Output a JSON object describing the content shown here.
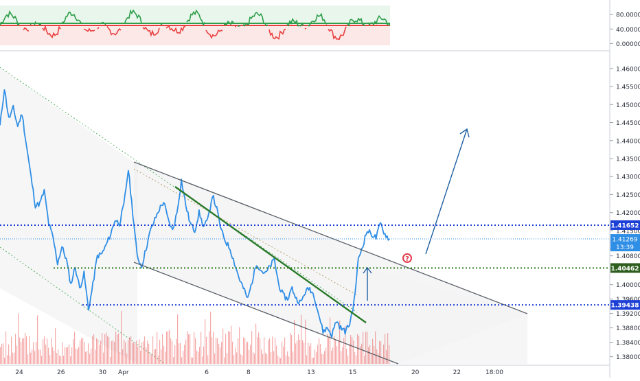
{
  "chart_data": {
    "type": "line",
    "instrument_note": "",
    "oscillator": {
      "ticks": [
        "80.00000",
        "40.00000",
        "0.00000"
      ],
      "tick_values": [
        80,
        40,
        0
      ],
      "ylim": [
        -5,
        105
      ],
      "upper_band": 50,
      "lower_band": 45,
      "colors": {
        "above": "#2e9e4a",
        "below": "#e8403f",
        "band_top": "#e9f6ec",
        "band_bottom": "#fde8e8"
      }
    },
    "price": {
      "ylim": [
        1.37935,
        1.46225
      ],
      "y_ticks": [
        "1.46000",
        "1.45500",
        "1.45000",
        "1.44500",
        "1.44000",
        "1.43500",
        "1.43000",
        "1.42500",
        "1.42000",
        "1.41500",
        "1.41000",
        "1.40800",
        "1.40000",
        "1.39600",
        "1.39200",
        "1.38800",
        "1.38400",
        "1.38000"
      ],
      "x_ticks": [
        {
          "label": "24",
          "index": 0
        },
        {
          "label": "26",
          "index": 2
        },
        {
          "label": "30",
          "index": 4
        },
        {
          "label": "Apr",
          "index": 5
        },
        {
          "label": "6",
          "index": 9
        },
        {
          "label": "8",
          "index": 11
        },
        {
          "label": "13",
          "index": 14
        },
        {
          "label": "15",
          "index": 16
        },
        {
          "label": "20",
          "index": 19
        },
        {
          "label": "22",
          "index": 21
        },
        {
          "label": "18:00",
          "index": 22.8
        }
      ],
      "x_domain": [
        0,
        27.5
      ],
      "series": [
        {
          "values": [
            1.444,
            1.4545,
            1.446,
            1.449,
            1.444,
            1.4475,
            1.4385,
            1.43,
            1.422,
            1.4225,
            1.426,
            1.417,
            1.413,
            1.406,
            1.4105,
            1.407,
            1.4,
            1.405,
            1.399,
            1.403,
            1.393,
            1.4,
            1.408,
            1.4085,
            1.411,
            1.414,
            1.418,
            1.417,
            1.422,
            1.432,
            1.42,
            1.408,
            1.405,
            1.41,
            1.415,
            1.418,
            1.421,
            1.423,
            1.418,
            1.415,
            1.42,
            1.429,
            1.422,
            1.417,
            1.415,
            1.42,
            1.416,
            1.418,
            1.425,
            1.421,
            1.415,
            1.412,
            1.41,
            1.406,
            1.402,
            1.399,
            1.396,
            1.401,
            1.406,
            1.404,
            1.403,
            1.405,
            1.407,
            1.4,
            1.397,
            1.396,
            1.399,
            1.396,
            1.395,
            1.398,
            1.399,
            1.397,
            1.392,
            1.387,
            1.388,
            1.386,
            1.39,
            1.388,
            1.387,
            1.389,
            1.395,
            1.407,
            1.411,
            1.415,
            1.414,
            1.413,
            1.417,
            1.414,
            1.4127
          ]
        }
      ],
      "series_color": "#2f8ee5",
      "current_price": "1.41269",
      "countdown": "13:39",
      "levels": [
        {
          "label": "1.41652",
          "value": 1.41652,
          "color": "#1c3fd6",
          "style": "dotted"
        },
        {
          "label": "1.40462",
          "value": 1.40462,
          "color": "#2e7d1e",
          "style": "dotted"
        },
        {
          "label": "1.39438",
          "value": 1.39438,
          "color": "#1c3fd6",
          "style": "dotted"
        }
      ],
      "annotation_symbol": "?",
      "volume_color": "#e8403f"
    }
  }
}
